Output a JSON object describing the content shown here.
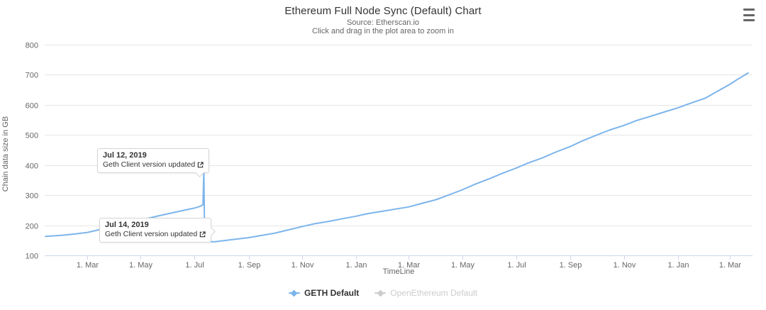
{
  "header": {
    "title": "Ethereum Full Node Sync (Default) Chart",
    "subtitle_source": "Source: Etherscan.io",
    "subtitle_hint": "Click and drag in the plot area to zoom in"
  },
  "colors": {
    "series_blue": "#7cb5ec",
    "disabled_grey": "#cccccc",
    "gridline": "#e6e6e6",
    "axis_line": "#ccd6eb",
    "text_dark": "#333333",
    "text_muted": "#666666"
  },
  "chart_data": {
    "type": "line",
    "title": "Ethereum Full Node Sync (Default) Chart",
    "subtitle": [
      "Source: Etherscan.io",
      "Click and drag in the plot area to zoom in"
    ],
    "xlabel": "TimeLine",
    "ylabel": "Chain data size in GB",
    "ylim": [
      100,
      800
    ],
    "grid": "horizontal-only",
    "legend_position": "bottom-center",
    "y_ticks": [
      100,
      200,
      300,
      400,
      500,
      600,
      700,
      800
    ],
    "x_range": {
      "min": "2019-01-12",
      "max": "2021-03-27"
    },
    "x_ticks": [
      {
        "date": "2019-03-01",
        "label": "1. Mar"
      },
      {
        "date": "2019-05-01",
        "label": "1. May"
      },
      {
        "date": "2019-07-01",
        "label": "1. Jul"
      },
      {
        "date": "2019-09-01",
        "label": "1. Sep"
      },
      {
        "date": "2019-11-01",
        "label": "1. Nov"
      },
      {
        "date": "2020-01-01",
        "label": "1. Jan"
      },
      {
        "date": "2020-03-01",
        "label": "1. Mar"
      },
      {
        "date": "2020-05-01",
        "label": "1. May"
      },
      {
        "date": "2020-07-01",
        "label": "1. Jul"
      },
      {
        "date": "2020-09-01",
        "label": "1. Sep"
      },
      {
        "date": "2020-11-01",
        "label": "1. Nov"
      },
      {
        "date": "2021-01-01",
        "label": "1. Jan"
      },
      {
        "date": "2021-03-01",
        "label": "1. Mar"
      }
    ],
    "series": [
      {
        "name": "GETH Default",
        "color": "#7cb5ec",
        "visible": true,
        "points": [
          [
            "2019-01-13",
            163
          ],
          [
            "2019-02-01",
            167
          ],
          [
            "2019-02-15",
            171
          ],
          [
            "2019-03-01",
            176
          ],
          [
            "2019-03-15",
            185
          ],
          [
            "2019-04-01",
            195
          ],
          [
            "2019-04-15",
            205
          ],
          [
            "2019-05-01",
            217
          ],
          [
            "2019-05-15",
            227
          ],
          [
            "2019-06-01",
            238
          ],
          [
            "2019-06-15",
            247
          ],
          [
            "2019-07-01",
            257
          ],
          [
            "2019-07-08",
            263
          ],
          [
            "2019-07-11",
            268
          ],
          [
            "2019-07-12",
            385
          ],
          [
            "2019-07-13",
            149
          ],
          [
            "2019-07-18",
            146
          ],
          [
            "2019-07-24",
            145
          ],
          [
            "2019-08-01",
            148
          ],
          [
            "2019-08-15",
            153
          ],
          [
            "2019-09-01",
            159
          ],
          [
            "2019-09-15",
            166
          ],
          [
            "2019-10-01",
            174
          ],
          [
            "2019-10-15",
            184
          ],
          [
            "2019-11-01",
            196
          ],
          [
            "2019-11-15",
            205
          ],
          [
            "2019-12-01",
            213
          ],
          [
            "2019-12-15",
            221
          ],
          [
            "2020-01-01",
            230
          ],
          [
            "2020-01-15",
            239
          ],
          [
            "2020-02-01",
            247
          ],
          [
            "2020-02-15",
            254
          ],
          [
            "2020-03-01",
            261
          ],
          [
            "2020-03-15",
            272
          ],
          [
            "2020-04-01",
            285
          ],
          [
            "2020-04-15",
            300
          ],
          [
            "2020-05-01",
            318
          ],
          [
            "2020-05-15",
            336
          ],
          [
            "2020-06-01",
            355
          ],
          [
            "2020-06-15",
            372
          ],
          [
            "2020-07-01",
            390
          ],
          [
            "2020-07-15",
            407
          ],
          [
            "2020-08-01",
            425
          ],
          [
            "2020-08-15",
            443
          ],
          [
            "2020-09-01",
            462
          ],
          [
            "2020-09-15",
            481
          ],
          [
            "2020-10-01",
            500
          ],
          [
            "2020-10-15",
            516
          ],
          [
            "2020-11-01",
            532
          ],
          [
            "2020-11-15",
            548
          ],
          [
            "2020-12-01",
            562
          ],
          [
            "2020-12-15",
            575
          ],
          [
            "2021-01-01",
            590
          ],
          [
            "2021-01-15",
            605
          ],
          [
            "2021-02-01",
            622
          ],
          [
            "2021-02-15",
            645
          ],
          [
            "2021-03-01",
            668
          ],
          [
            "2021-03-10",
            685
          ],
          [
            "2021-03-22",
            706
          ]
        ]
      },
      {
        "name": "OpenEthereum Default",
        "color": "#cccccc",
        "visible": false,
        "points": []
      }
    ],
    "annotations": [
      {
        "title": "Jul 12, 2019",
        "text": "Geth Client version updated",
        "anchor_date": "2019-07-12",
        "anchor_value": 385
      },
      {
        "title": "Jul 14, 2019",
        "text": "Geth Client version updated",
        "anchor_date": "2019-07-14",
        "anchor_value": 150
      }
    ]
  },
  "legend": {
    "items": [
      {
        "label": "GETH Default",
        "active": true
      },
      {
        "label": "OpenEthereum Default",
        "active": false
      }
    ]
  }
}
